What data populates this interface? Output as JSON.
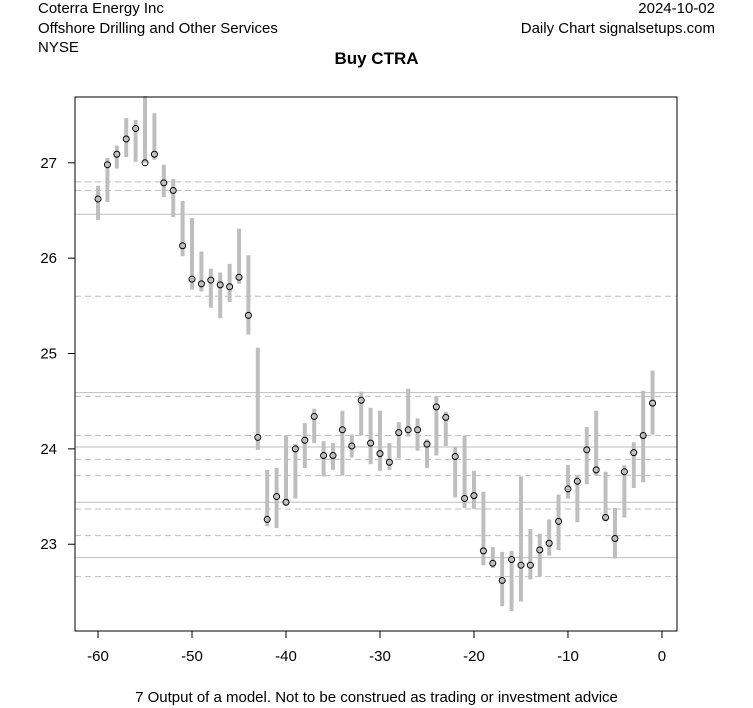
{
  "header": {
    "company": "Coterra Energy Inc",
    "industry": "Offshore Drilling and Other Services",
    "exchange": "NYSE",
    "date": "2024-10-02",
    "source": "Daily Chart signalsetups.com"
  },
  "footer": "7 Output of a model. Not to be construed as trading or investment advice",
  "chart_data": {
    "type": "range-bar",
    "title": "Buy CTRA",
    "xlabel": "",
    "ylabel": "",
    "xlim": [
      -62.45,
      1.6
    ],
    "ylim": [
      22.09,
      27.69
    ],
    "xticks": [
      -60,
      -50,
      -40,
      -30,
      -20,
      -10,
      0
    ],
    "yticks": [
      23,
      24,
      25,
      26,
      27
    ],
    "x": [
      -60,
      -59,
      -58,
      -57,
      -56,
      -55,
      -54,
      -53,
      -52,
      -51,
      -50,
      -49,
      -48,
      -47,
      -46,
      -45,
      -44,
      -43,
      -42,
      -41,
      -40,
      -39,
      -38,
      -37,
      -36,
      -35,
      -34,
      -33,
      -32,
      -31,
      -30,
      -29,
      -28,
      -27,
      -26,
      -25,
      -24,
      -23,
      -22,
      -21,
      -20,
      -19,
      -18,
      -17,
      -16,
      -15,
      -14,
      -13,
      -12,
      -11,
      -10,
      -9,
      -8,
      -7,
      -6,
      -5,
      -4,
      -3,
      -2,
      -1
    ],
    "close": [
      26.62,
      26.98,
      27.09,
      27.25,
      27.36,
      27.0,
      27.09,
      26.79,
      26.71,
      26.13,
      25.78,
      25.73,
      25.77,
      25.72,
      25.7,
      25.8,
      25.4,
      24.12,
      23.26,
      23.5,
      23.44,
      24.0,
      24.09,
      24.34,
      23.93,
      23.93,
      24.2,
      24.03,
      24.51,
      24.06,
      23.95,
      23.86,
      24.17,
      24.2,
      24.2,
      24.05,
      24.44,
      24.33,
      23.92,
      23.48,
      23.51,
      22.93,
      22.8,
      22.62,
      22.84,
      22.78,
      22.78,
      22.94,
      23.01,
      23.24,
      23.58,
      23.66,
      23.99,
      23.78,
      23.28,
      23.06,
      23.76,
      23.96,
      24.14,
      24.48
    ],
    "high": [
      26.76,
      27.05,
      27.18,
      27.47,
      27.45,
      27.7,
      27.52,
      26.98,
      26.83,
      26.6,
      26.42,
      26.07,
      25.89,
      25.85,
      25.94,
      26.31,
      26.03,
      25.06,
      23.78,
      23.8,
      24.14,
      24.05,
      24.27,
      24.42,
      24.08,
      24.06,
      24.4,
      24.15,
      24.6,
      24.43,
      24.4,
      24.06,
      24.28,
      24.63,
      24.32,
      24.1,
      24.55,
      24.39,
      24.02,
      24.14,
      23.77,
      23.55,
      22.97,
      22.92,
      22.93,
      23.71,
      23.16,
      23.11,
      23.26,
      23.52,
      23.83,
      23.72,
      24.23,
      24.4,
      23.76,
      23.38,
      23.83,
      24.07,
      24.61,
      24.82
    ],
    "low": [
      26.4,
      26.59,
      26.94,
      27.06,
      27.01,
      27.0,
      27.03,
      26.64,
      26.43,
      26.02,
      25.67,
      25.65,
      25.48,
      25.37,
      25.54,
      25.73,
      25.2,
      23.99,
      23.19,
      23.17,
      23.41,
      23.48,
      23.8,
      24.06,
      23.71,
      23.78,
      23.72,
      23.91,
      24.14,
      23.84,
      23.77,
      23.78,
      23.9,
      24.13,
      23.98,
      23.8,
      23.93,
      24.03,
      23.49,
      23.38,
      23.37,
      22.78,
      22.75,
      22.35,
      22.3,
      22.4,
      22.63,
      22.66,
      22.88,
      22.94,
      23.48,
      23.23,
      23.63,
      23.72,
      23.24,
      22.85,
      23.28,
      23.59,
      23.65,
      24.15
    ],
    "solid_levels": [
      26.46,
      24.59,
      24.02,
      23.44,
      22.86
    ],
    "dashed_levels": [
      26.8,
      26.71,
      25.6,
      24.55,
      24.14,
      23.89,
      23.72,
      23.37,
      23.09,
      22.66
    ],
    "colors": {
      "bar": "#bebebe",
      "level": "#bebebe",
      "point": "#000000"
    }
  }
}
